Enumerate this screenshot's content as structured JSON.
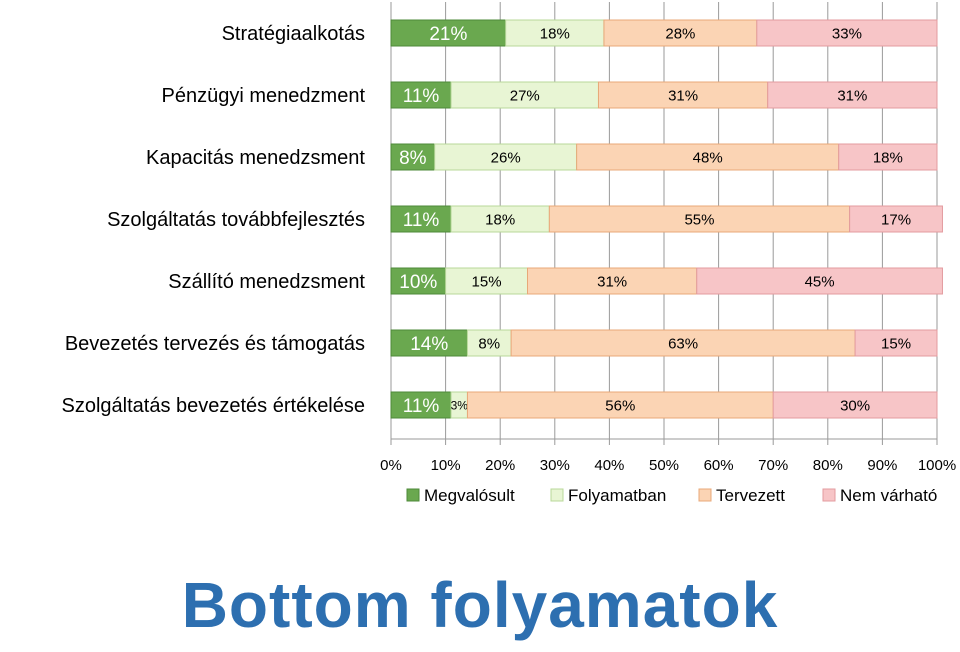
{
  "page": {
    "title": "Bottom folyamatok"
  },
  "chart_data": {
    "type": "bar",
    "orientation": "horizontal",
    "stacked": "percent",
    "categories": [
      "Stratégiaalkotás",
      "Pénzügyi menedzment",
      "Kapacitás menedzsment",
      "Szolgáltatás továbbfejlesztés",
      "Szállító menedzsment",
      "Bevezetés tervezés és támogatás",
      "Szolgáltatás bevezetés értékelése"
    ],
    "series": [
      {
        "name": "Megvalósult",
        "color": "#6aa84f",
        "values": [
          21,
          11,
          8,
          11,
          10,
          14,
          11
        ]
      },
      {
        "name": "Folyamatban",
        "color": "#e8f5d4",
        "values": [
          18,
          27,
          26,
          18,
          15,
          8,
          3
        ]
      },
      {
        "name": "Tervezett",
        "color": "#fbd4b4",
        "values": [
          28,
          31,
          48,
          55,
          31,
          63,
          56
        ]
      },
      {
        "name": "Nem várható",
        "color": "#f7c5c7",
        "values": [
          33,
          31,
          18,
          17,
          45,
          15,
          30
        ]
      }
    ],
    "xlim": [
      0,
      100
    ],
    "xticks": [
      "0%",
      "10%",
      "20%",
      "30%",
      "40%",
      "50%",
      "60%",
      "70%",
      "80%",
      "90%",
      "100%"
    ],
    "legend_position": "bottom",
    "grid": true
  }
}
